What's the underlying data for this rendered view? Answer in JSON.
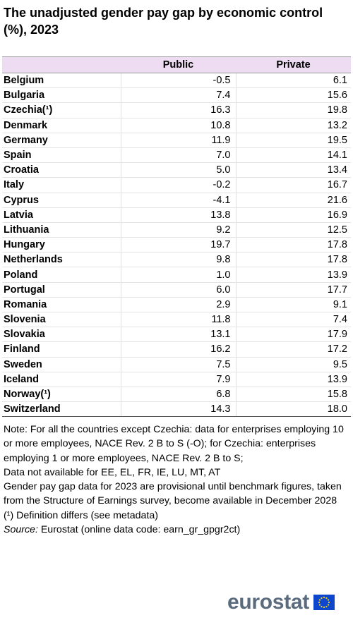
{
  "chart_data": {
    "type": "table",
    "title": "The unadjusted gender pay gap by economic control (%), 2023",
    "columns": [
      "",
      "Public",
      "Private"
    ],
    "rows": [
      {
        "country": "Belgium",
        "public": "-0.5",
        "private": "6.1"
      },
      {
        "country": "Bulgaria",
        "public": "7.4",
        "private": "15.6"
      },
      {
        "country": "Czechia(¹)",
        "public": "16.3",
        "private": "19.8"
      },
      {
        "country": "Denmark",
        "public": "10.8",
        "private": "13.2"
      },
      {
        "country": "Germany",
        "public": "11.9",
        "private": "19.5"
      },
      {
        "country": "Spain",
        "public": "7.0",
        "private": "14.1"
      },
      {
        "country": "Croatia",
        "public": "5.0",
        "private": "13.4"
      },
      {
        "country": "Italy",
        "public": "-0.2",
        "private": "16.7"
      },
      {
        "country": "Cyprus",
        "public": "-4.1",
        "private": "21.6"
      },
      {
        "country": "Latvia",
        "public": "13.8",
        "private": "16.9"
      },
      {
        "country": "Lithuania",
        "public": "9.2",
        "private": "12.5"
      },
      {
        "country": "Hungary",
        "public": "19.7",
        "private": "17.8"
      },
      {
        "country": "Netherlands",
        "public": "9.8",
        "private": "17.8"
      },
      {
        "country": "Poland",
        "public": "1.0",
        "private": "13.9"
      },
      {
        "country": "Portugal",
        "public": "6.0",
        "private": "17.7"
      },
      {
        "country": "Romania",
        "public": "2.9",
        "private": "9.1"
      },
      {
        "country": "Slovenia",
        "public": "11.8",
        "private": "7.4"
      },
      {
        "country": "Slovakia",
        "public": "13.1",
        "private": "17.9"
      },
      {
        "country": "Finland",
        "public": "16.2",
        "private": "17.2"
      },
      {
        "country": "Sweden",
        "public": "7.5",
        "private": "9.5"
      },
      {
        "country": "Iceland",
        "public": "7.9",
        "private": "13.9"
      },
      {
        "country": "Norway(¹)",
        "public": "6.8",
        "private": "15.8"
      },
      {
        "country": "Switzerland",
        "public": "14.3",
        "private": "18.0"
      }
    ]
  },
  "notes": {
    "note": "Note: For all the countries except Czechia: data for enterprises employing 10 or more employees, NACE Rev. 2 B to S (-O); for Czechia: enterprises employing 1 or more employees, NACE Rev. 2 B to S;",
    "not_available": "Data not available for EE, EL, FR, IE, LU, MT, AT",
    "provisional": "Gender pay gap data for 2023 are provisional until benchmark figures, taken from the Structure of Earnings survey, become available in December 2028",
    "footnote": "(¹) Definition differs (see metadata)",
    "source_label": "Source:",
    "source_text": " Eurostat (online data code: earn_gr_gpgr2ct)"
  },
  "logo": {
    "text": "eurostat",
    "flag_icon": "eu-flag-icon",
    "flag_color": "#0e47cb",
    "star_color": "#ffdd00"
  }
}
